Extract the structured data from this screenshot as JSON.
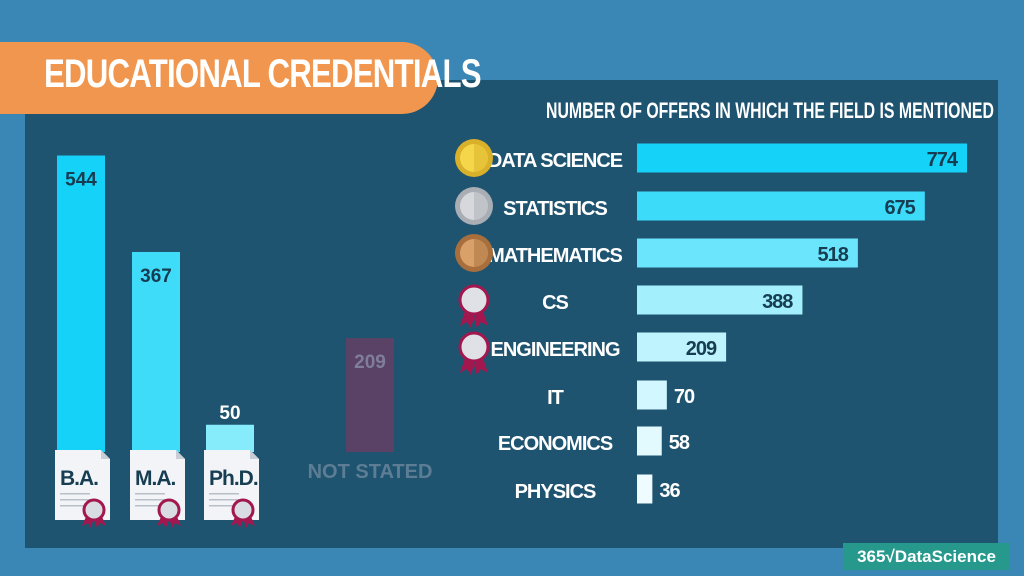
{
  "title": "EDUCATIONAL CREDENTIALS",
  "logo_text": "365√DataScience",
  "colors": {
    "background": "#3a86b4",
    "panel": "#1f5470",
    "banner": "#f0964e",
    "not_stated": "#5a4266",
    "ribbon": "#a3174f",
    "logo": "#26998c"
  },
  "chart_data": [
    {
      "type": "bar",
      "orientation": "vertical",
      "categories": [
        "B.A.",
        "M.A.",
        "Ph.D.",
        "NOT STATED"
      ],
      "values": [
        544,
        367,
        50,
        209
      ],
      "bar_colors": [
        "#14d2f8",
        "#3fdcfa",
        "#86ecfc",
        "#5a4266"
      ],
      "icons": [
        "certificate-icon",
        "certificate-icon",
        "certificate-icon",
        null
      ]
    },
    {
      "type": "bar",
      "orientation": "horizontal",
      "title": "NUMBER OF OFFERS IN WHICH THE FIELD IS MENTIONED",
      "categories": [
        "DATA SCIENCE",
        "STATISTICS",
        "MATHEMATICS",
        "CS",
        "ENGINEERING",
        "IT",
        "ECONOMICS",
        "PHYSICS"
      ],
      "values": [
        774,
        675,
        518,
        388,
        209,
        70,
        58,
        36
      ],
      "bar_colors": [
        "#14d2f8",
        "#3ddbfa",
        "#6ae5fb",
        "#a3effc",
        "#bff3fd",
        "#d2f7fe",
        "#e2fafe",
        "#eefcff"
      ],
      "icons": [
        "gold-medal-icon",
        "silver-medal-icon",
        "bronze-medal-icon",
        "rosette-icon",
        "rosette-icon",
        null,
        null,
        null
      ]
    }
  ]
}
